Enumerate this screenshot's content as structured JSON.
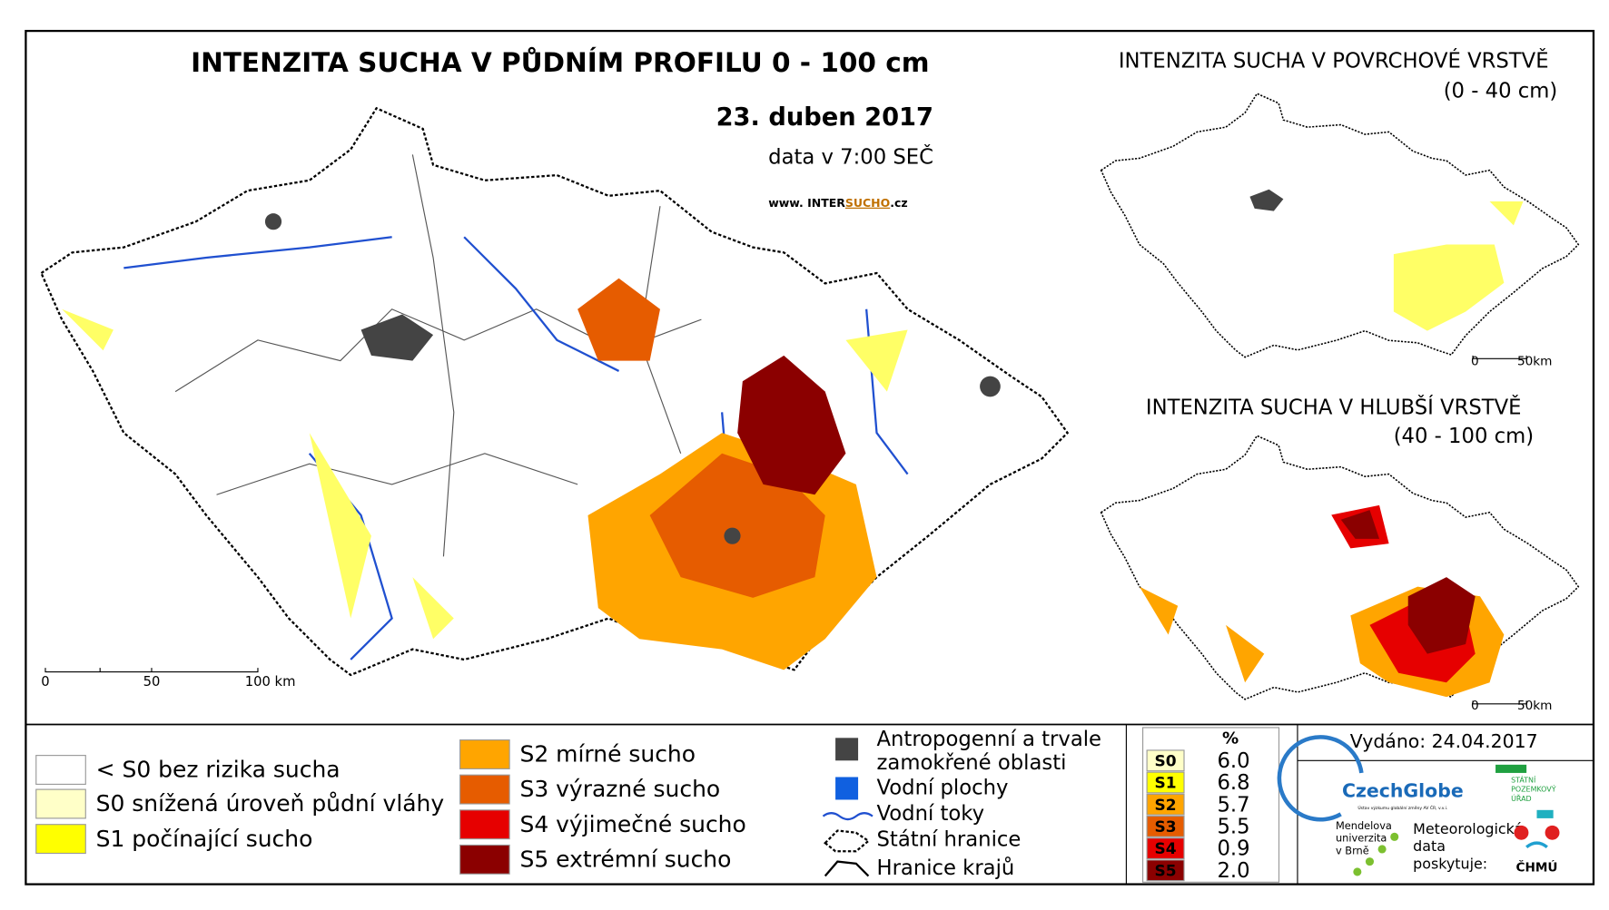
{
  "main": {
    "title": "INTENZITA SUCHA V PŮDNÍM PROFILU 0 - 100 cm",
    "date": "23. duben 2017",
    "time": "data v 7:00 SEČ",
    "website": {
      "prefix": "www. INTER",
      "highlight": "SUCHO",
      "suffix": ".cz"
    },
    "scale": [
      "0",
      "50",
      "100 km"
    ]
  },
  "insets": [
    {
      "title": "INTENZITA SUCHA V POVRCHOVÉ VRSTVĚ",
      "subtitle": "(0 - 40 cm)",
      "scale": [
        "0",
        "50km"
      ]
    },
    {
      "title": "INTENZITA SUCHA V HLUBŠÍ VRSTVĚ",
      "subtitle": "(40 - 100 cm)",
      "scale": [
        "0",
        "50km"
      ]
    }
  ],
  "legend": {
    "classes": [
      {
        "label": "< S0 bez rizika sucha",
        "color": "#ffffff"
      },
      {
        "label": "S0 snížená úroveň půdní vláhy",
        "color": "#ffffc8"
      },
      {
        "label": "S1 počínající sucho",
        "color": "#ffff00"
      },
      {
        "label": "S2 mírné sucho",
        "color": "#ffa500"
      },
      {
        "label": "S3 výrazné sucho",
        "color": "#e65c00"
      },
      {
        "label": "S4 výjimečné sucho",
        "color": "#e60000"
      },
      {
        "label": "S5 extrémní sucho",
        "color": "#8b0000"
      }
    ],
    "symbols": [
      {
        "label": [
          "Antropogenní a trvale",
          "zamokřené oblasti"
        ]
      },
      {
        "label": [
          "Vodní plochy"
        ]
      },
      {
        "label": [
          "Vodní toky"
        ]
      },
      {
        "label": [
          "Státní hranice"
        ]
      },
      {
        "label": [
          "Hranice krajů"
        ]
      }
    ]
  },
  "stats": {
    "header": "%",
    "rows": [
      [
        "S0",
        "6.0"
      ],
      [
        "S1",
        "6.8"
      ],
      [
        "S2",
        "5.7"
      ],
      [
        "S3",
        "5.5"
      ],
      [
        "S4",
        "0.9"
      ],
      [
        "S5",
        "2.0"
      ]
    ]
  },
  "footer": {
    "issued": "Vydáno: 24.04.2017",
    "czechglobe": "CzechGlobe",
    "czechglobe_sub": "Ústav výzkumu globální změny AV ČR, v.v.i.",
    "spu": [
      "STÁTNÍ",
      "POZEMKOVÝ",
      "ÚŘAD"
    ],
    "mendelu": [
      "Mendelova",
      "univerzita",
      "v Brně"
    ],
    "meteo": [
      "Meteorologická",
      "data",
      "poskytuje:"
    ],
    "chmu": "ČHMÚ"
  }
}
